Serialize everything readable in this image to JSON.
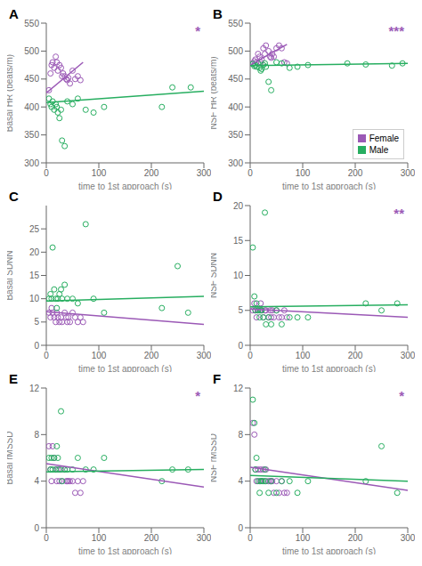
{
  "chart_data": [
    {
      "type": "scatter",
      "title": "A",
      "xlabel": "time to 1st approach (s)",
      "ylabel": "Basal HR (beats/m)",
      "xlim": [
        0,
        300
      ],
      "xticks": [
        0,
        100,
        200,
        300
      ],
      "ylim": [
        300,
        550
      ],
      "yticks": [
        300,
        350,
        400,
        450,
        500,
        550
      ],
      "annotations": [
        {
          "text": "*",
          "color": "#9B59B6"
        }
      ],
      "series": [
        {
          "type": "scatter",
          "marker": "circle",
          "color": "#9B59B6",
          "x": [
            5,
            8,
            10,
            12,
            15,
            18,
            20,
            22,
            25,
            28,
            30,
            32,
            35,
            38,
            40,
            42,
            45,
            50,
            55,
            60,
            65
          ],
          "values": [
            430,
            460,
            475,
            480,
            470,
            490,
            480,
            465,
            475,
            470,
            455,
            460,
            455,
            450,
            448,
            452,
            442,
            465,
            450,
            455,
            448
          ]
        },
        {
          "type": "scatter",
          "marker": "circle",
          "color": "#27AE60",
          "x": [
            5,
            8,
            10,
            12,
            15,
            18,
            20,
            22,
            25,
            28,
            30,
            35,
            40,
            50,
            60,
            75,
            90,
            110,
            220,
            240,
            275
          ],
          "values": [
            415,
            405,
            400,
            410,
            395,
            405,
            400,
            390,
            380,
            395,
            340,
            330,
            410,
            405,
            415,
            395,
            390,
            400,
            400,
            435,
            435
          ]
        },
        {
          "type": "line",
          "color": "#9B59B6",
          "x": [
            0,
            70
          ],
          "values": [
            425,
            480
          ]
        },
        {
          "type": "line",
          "color": "#27AE60",
          "x": [
            0,
            300
          ],
          "values": [
            408,
            428
          ]
        }
      ]
    },
    {
      "type": "scatter",
      "title": "B",
      "xlabel": "time to 1st approach (s)",
      "ylabel": "NSF HR (beats/m)",
      "xlim": [
        0,
        300
      ],
      "xticks": [
        0,
        100,
        200,
        300
      ],
      "ylim": [
        300,
        550
      ],
      "yticks": [
        300,
        350,
        400,
        450,
        500,
        550
      ],
      "annotations": [
        {
          "text": "***",
          "color": "#9B59B6"
        }
      ],
      "legend": "lower right",
      "series": [
        {
          "name": "Female",
          "type": "scatter",
          "marker": "circle",
          "color": "#9B59B6",
          "x": [
            5,
            8,
            10,
            12,
            15,
            18,
            20,
            22,
            25,
            28,
            30,
            35,
            38,
            40,
            42,
            45,
            50,
            55,
            60,
            65,
            70
          ],
          "values": [
            478,
            482,
            485,
            480,
            495,
            490,
            480,
            485,
            505,
            495,
            510,
            500,
            490,
            488,
            495,
            490,
            505,
            510,
            505,
            480,
            478
          ]
        },
        {
          "name": "Male",
          "type": "scatter",
          "marker": "circle",
          "color": "#27AE60",
          "x": [
            5,
            8,
            10,
            12,
            15,
            18,
            20,
            22,
            25,
            28,
            30,
            35,
            40,
            50,
            60,
            75,
            90,
            110,
            185,
            220,
            270,
            290
          ],
          "values": [
            477,
            473,
            475,
            472,
            478,
            470,
            465,
            468,
            475,
            478,
            472,
            445,
            430,
            480,
            478,
            470,
            472,
            475,
            478,
            476,
            474,
            478
          ]
        },
        {
          "type": "line",
          "color": "#9B59B6",
          "x": [
            0,
            70
          ],
          "values": [
            475,
            512
          ]
        },
        {
          "type": "line",
          "color": "#27AE60",
          "x": [
            0,
            300
          ],
          "values": [
            474,
            478
          ]
        }
      ]
    },
    {
      "type": "scatter",
      "title": "C",
      "xlabel": "time to 1st approach (s)",
      "ylabel": "Basal SDNN",
      "xlim": [
        0,
        300
      ],
      "xticks": [
        0,
        100,
        200,
        300
      ],
      "ylim": [
        0,
        30
      ],
      "yticks": [
        0,
        5,
        10,
        15,
        20,
        25
      ],
      "series": [
        {
          "type": "scatter",
          "marker": "circle",
          "color": "#9B59B6",
          "x": [
            5,
            8,
            10,
            12,
            15,
            18,
            20,
            22,
            25,
            28,
            30,
            35,
            38,
            40,
            42,
            45,
            50,
            55,
            60,
            65,
            70
          ],
          "values": [
            7,
            6,
            8,
            7,
            6,
            5,
            7,
            6,
            5,
            6,
            5,
            7,
            6,
            5,
            6,
            5,
            7,
            6,
            5,
            6,
            5
          ]
        },
        {
          "type": "scatter",
          "marker": "circle",
          "color": "#27AE60",
          "x": [
            5,
            8,
            10,
            12,
            15,
            18,
            20,
            22,
            25,
            28,
            30,
            35,
            40,
            50,
            60,
            75,
            90,
            110,
            220,
            250,
            270
          ],
          "values": [
            10,
            11,
            10,
            21,
            12,
            10,
            8,
            10,
            11,
            12,
            10,
            13,
            10,
            10,
            9,
            26,
            10,
            7,
            8,
            17,
            7
          ]
        },
        {
          "type": "line",
          "color": "#9B59B6",
          "x": [
            0,
            300
          ],
          "values": [
            7.2,
            4.5
          ]
        },
        {
          "type": "line",
          "color": "#27AE60",
          "x": [
            0,
            300
          ],
          "values": [
            9.5,
            10.5
          ]
        }
      ]
    },
    {
      "type": "scatter",
      "title": "D",
      "xlabel": "time to 1st approach (s)",
      "ylabel": "NSF SDNN",
      "xlim": [
        0,
        300
      ],
      "xticks": [
        0,
        100,
        200,
        300
      ],
      "ylim": [
        0,
        20
      ],
      "yticks": [
        0,
        5,
        10,
        15,
        20
      ],
      "annotations": [
        {
          "text": "**",
          "color": "#9B59B6"
        }
      ],
      "series": [
        {
          "type": "scatter",
          "marker": "circle",
          "color": "#9B59B6",
          "x": [
            5,
            8,
            10,
            12,
            15,
            18,
            20,
            22,
            25,
            28,
            30,
            35,
            38,
            40,
            42,
            45,
            50,
            55,
            60,
            65,
            70
          ],
          "values": [
            5,
            6,
            5,
            4,
            5,
            5,
            6,
            5,
            4,
            5,
            5,
            4,
            5,
            4,
            5,
            4,
            5,
            4,
            4,
            5,
            4
          ]
        },
        {
          "type": "scatter",
          "marker": "circle",
          "color": "#27AE60",
          "x": [
            5,
            8,
            10,
            12,
            15,
            18,
            20,
            22,
            25,
            28,
            30,
            35,
            40,
            50,
            60,
            75,
            90,
            110,
            220,
            250,
            280
          ],
          "values": [
            14,
            7,
            5,
            6,
            5,
            4,
            5,
            5,
            4,
            19,
            3,
            4,
            3,
            5,
            3,
            4,
            4,
            4,
            6,
            5,
            6
          ]
        },
        {
          "type": "line",
          "color": "#9B59B6",
          "x": [
            0,
            300
          ],
          "values": [
            5.2,
            4.0
          ]
        },
        {
          "type": "line",
          "color": "#27AE60",
          "x": [
            0,
            300
          ],
          "values": [
            5.5,
            5.8
          ]
        }
      ]
    },
    {
      "type": "scatter",
      "title": "E",
      "xlabel": "time to 1st approach (s)",
      "ylabel": "Basal rMSSD",
      "xlim": [
        0,
        300
      ],
      "xticks": [
        0,
        100,
        200,
        300
      ],
      "ylim": [
        0,
        12
      ],
      "yticks": [
        0,
        4,
        8,
        12
      ],
      "annotations": [
        {
          "text": "*",
          "color": "#9B59B6"
        }
      ],
      "series": [
        {
          "type": "scatter",
          "marker": "circle",
          "color": "#9B59B6",
          "x": [
            5,
            8,
            10,
            12,
            15,
            18,
            20,
            22,
            25,
            28,
            30,
            35,
            38,
            40,
            42,
            45,
            50,
            55,
            60,
            65,
            70
          ],
          "values": [
            7,
            5,
            4,
            7,
            6,
            5,
            4,
            5,
            4,
            5,
            4,
            5,
            4,
            4,
            4,
            4,
            4,
            3,
            4,
            3,
            4
          ]
        },
        {
          "type": "scatter",
          "marker": "circle",
          "color": "#27AE60",
          "x": [
            5,
            8,
            10,
            12,
            15,
            18,
            20,
            22,
            25,
            28,
            30,
            35,
            40,
            50,
            60,
            75,
            90,
            110,
            220,
            240,
            270
          ],
          "values": [
            6,
            5,
            6,
            5,
            6,
            5,
            7,
            6,
            5,
            10,
            4,
            5,
            5,
            5,
            6,
            5,
            5,
            6,
            4,
            5,
            5
          ]
        },
        {
          "type": "line",
          "color": "#9B59B6",
          "x": [
            0,
            300
          ],
          "values": [
            5.5,
            3.5
          ]
        },
        {
          "type": "line",
          "color": "#27AE60",
          "x": [
            0,
            300
          ],
          "values": [
            4.8,
            5.0
          ]
        }
      ]
    },
    {
      "type": "scatter",
      "title": "F",
      "xlabel": "time to 1st approach (s)",
      "ylabel": "NSF rMSSD",
      "xlim": [
        0,
        300
      ],
      "xticks": [
        0,
        100,
        200,
        300
      ],
      "ylim": [
        0,
        12
      ],
      "yticks": [
        0,
        4,
        8,
        12
      ],
      "annotations": [
        {
          "text": "*",
          "color": "#9B59B6"
        }
      ],
      "series": [
        {
          "type": "scatter",
          "marker": "circle",
          "color": "#9B59B6",
          "x": [
            5,
            8,
            10,
            12,
            15,
            18,
            20,
            22,
            25,
            28,
            30,
            35,
            38,
            40,
            42,
            45,
            50,
            55,
            60,
            65,
            70
          ],
          "values": [
            9,
            8,
            5,
            4,
            5,
            4,
            5,
            4,
            5,
            4,
            5,
            4,
            4,
            4,
            4,
            3,
            4,
            3,
            4,
            3,
            3
          ]
        },
        {
          "type": "scatter",
          "marker": "circle",
          "color": "#27AE60",
          "x": [
            5,
            8,
            10,
            12,
            15,
            18,
            20,
            22,
            25,
            28,
            30,
            35,
            40,
            50,
            60,
            75,
            90,
            110,
            220,
            250,
            280
          ],
          "values": [
            11,
            9,
            5,
            6,
            4,
            3,
            4,
            4,
            4,
            5,
            4,
            3,
            4,
            3,
            4,
            4,
            3,
            4,
            4,
            7,
            3
          ]
        },
        {
          "type": "line",
          "color": "#9B59B6",
          "x": [
            0,
            300
          ],
          "values": [
            5.2,
            3.2
          ]
        },
        {
          "type": "line",
          "color": "#27AE60",
          "x": [
            0,
            300
          ],
          "values": [
            4.5,
            4.0
          ]
        }
      ]
    }
  ]
}
